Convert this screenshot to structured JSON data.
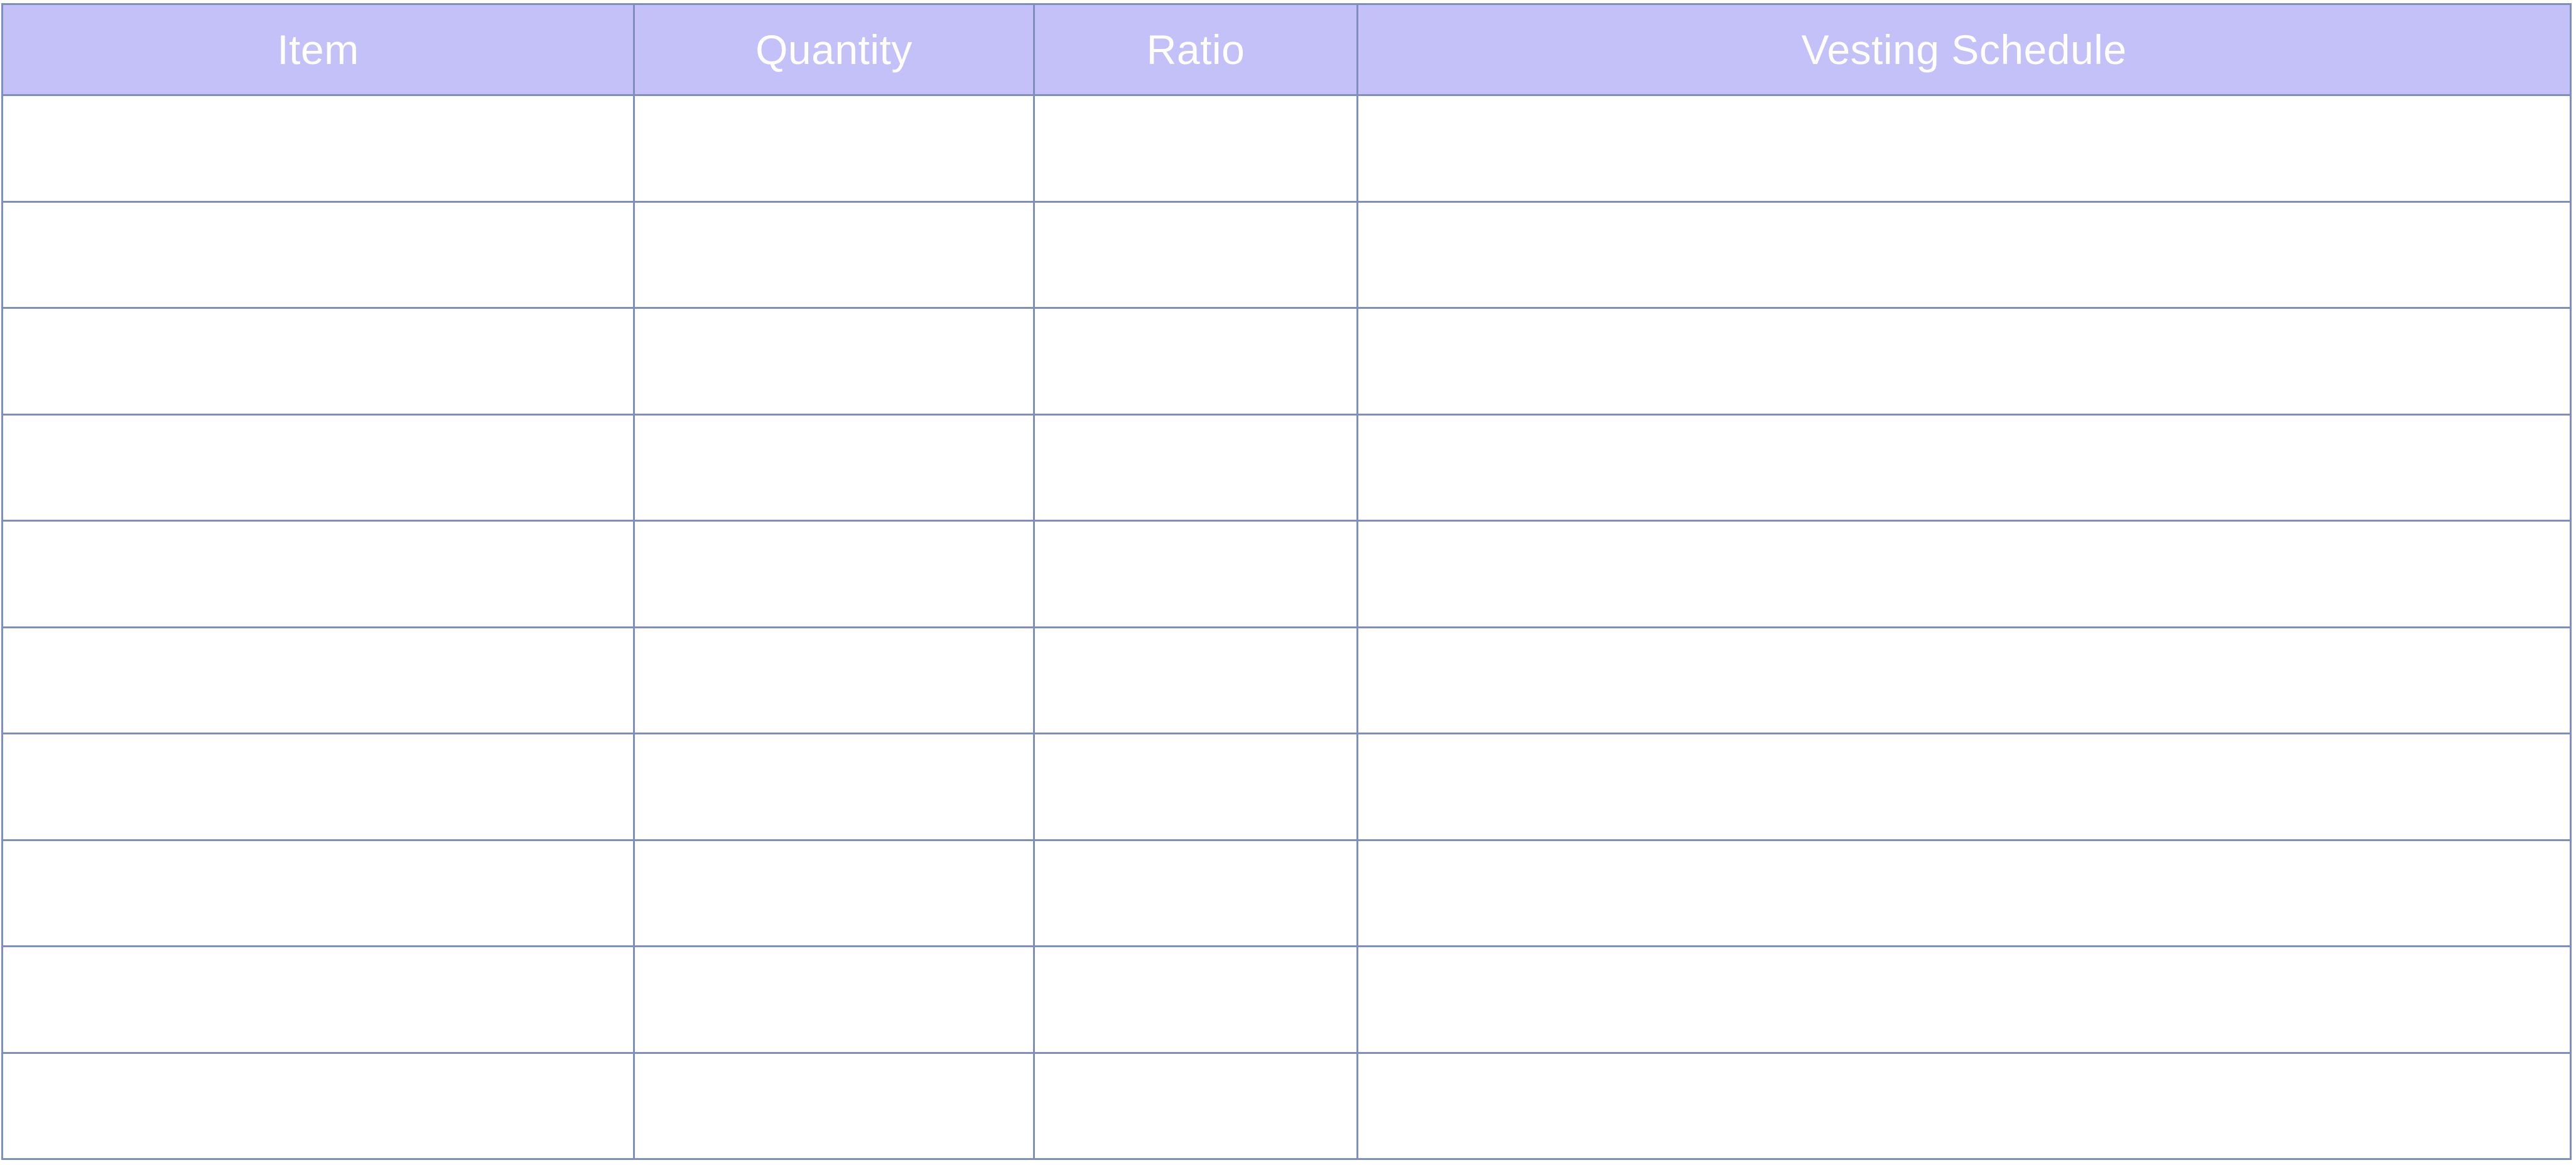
{
  "table": {
    "columns": [
      "Item",
      "Quantity",
      "Ratio",
      "Vesting Schedule"
    ],
    "rows": [
      [
        "",
        "",
        "",
        ""
      ],
      [
        "",
        "",
        "",
        ""
      ],
      [
        "",
        "",
        "",
        ""
      ],
      [
        "",
        "",
        "",
        ""
      ],
      [
        "",
        "",
        "",
        ""
      ],
      [
        "",
        "",
        "",
        ""
      ],
      [
        "",
        "",
        "",
        ""
      ],
      [
        "",
        "",
        "",
        ""
      ],
      [
        "",
        "",
        "",
        ""
      ],
      [
        "",
        "",
        "",
        ""
      ]
    ]
  },
  "colors": {
    "header_bg": "#c4c0f8",
    "header_text": "#ffffff",
    "border": "#7f8fbd",
    "cell_bg": "#ffffff"
  }
}
